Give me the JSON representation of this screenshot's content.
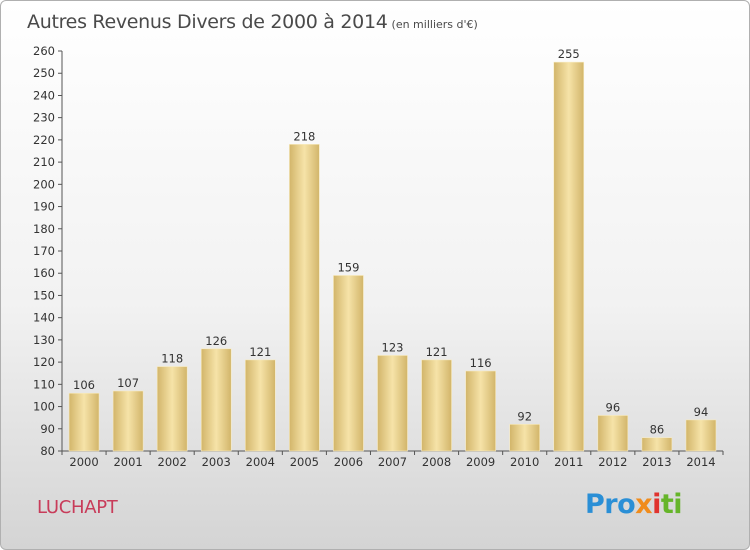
{
  "title": "Autres Revenus Divers de 2000 à 2014",
  "unit_note": "(en milliers d'€)",
  "location": "LUCHAPT",
  "logo": {
    "text": "Proxiti",
    "parts": [
      "Pro",
      "x",
      "i",
      "ti"
    ]
  },
  "colors": {
    "bar": "#e6cd8a",
    "bar_light": "#f6e3a8",
    "bar_dark": "#d2b56a",
    "title": "#4a4a4a",
    "location": "#c83c5a"
  },
  "chart_data": {
    "type": "bar",
    "title": "Autres Revenus Divers de 2000 à 2014",
    "ylabel": "",
    "xlabel": "",
    "categories": [
      "2000",
      "2001",
      "2002",
      "2003",
      "2004",
      "2005",
      "2006",
      "2007",
      "2008",
      "2009",
      "2010",
      "2011",
      "2012",
      "2013",
      "2014"
    ],
    "values": [
      106,
      107,
      118,
      126,
      121,
      218,
      159,
      123,
      121,
      116,
      92,
      255,
      96,
      86,
      94
    ],
    "ylim": [
      80,
      260
    ],
    "yticks": [
      80,
      90,
      100,
      110,
      120,
      130,
      140,
      150,
      160,
      170,
      180,
      190,
      200,
      210,
      220,
      230,
      240,
      250,
      260
    ],
    "grid": false,
    "data_labels": true
  }
}
